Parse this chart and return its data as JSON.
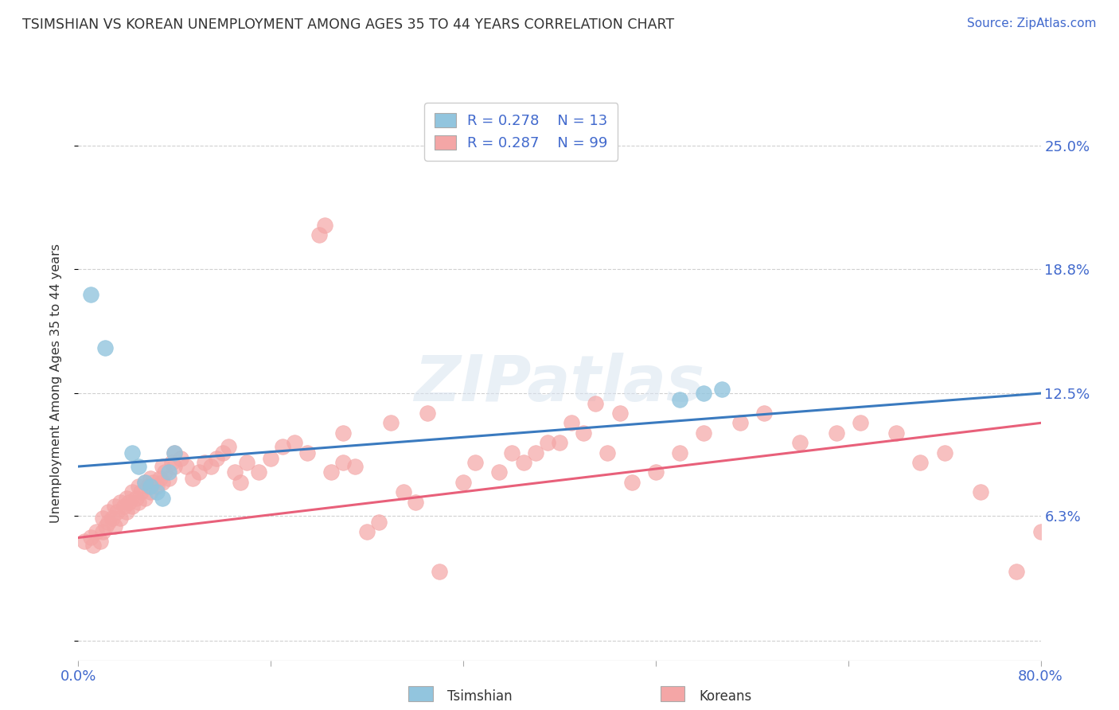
{
  "title": "TSIMSHIAN VS KOREAN UNEMPLOYMENT AMONG AGES 35 TO 44 YEARS CORRELATION CHART",
  "source": "Source: ZipAtlas.com",
  "ylabel": "Unemployment Among Ages 35 to 44 years",
  "yticks": [
    0.0,
    6.3,
    12.5,
    18.8,
    25.0
  ],
  "ytick_labels": [
    "",
    "6.3%",
    "12.5%",
    "18.8%",
    "25.0%"
  ],
  "xlim": [
    0.0,
    80.0
  ],
  "ylim": [
    -1.0,
    27.0
  ],
  "tsimshian_R": 0.278,
  "tsimshian_N": 13,
  "korean_R": 0.287,
  "korean_N": 99,
  "tsimshian_color": "#92c5de",
  "korean_color": "#f4a6a6",
  "tsimshian_line_color": "#3a7abf",
  "korean_line_color": "#e8607a",
  "text_color": "#4169cd",
  "dark_text": "#333333",
  "background_color": "#ffffff",
  "grid_color": "#d0d0d0",
  "tsimshian_x": [
    1.0,
    2.2,
    4.5,
    5.0,
    5.5,
    6.0,
    6.5,
    7.0,
    7.5,
    8.0,
    50.0,
    52.0,
    53.5
  ],
  "tsimshian_y": [
    17.5,
    14.8,
    9.5,
    8.8,
    8.0,
    7.8,
    7.5,
    7.2,
    8.5,
    9.5,
    12.2,
    12.5,
    12.7
  ],
  "korean_x": [
    0.5,
    1.0,
    1.2,
    1.5,
    1.8,
    2.0,
    2.0,
    2.3,
    2.5,
    2.5,
    2.8,
    3.0,
    3.0,
    3.2,
    3.5,
    3.5,
    3.8,
    4.0,
    4.0,
    4.2,
    4.5,
    4.5,
    4.8,
    5.0,
    5.0,
    5.2,
    5.5,
    5.5,
    5.8,
    6.0,
    6.0,
    6.2,
    6.5,
    6.8,
    7.0,
    7.0,
    7.2,
    7.5,
    7.8,
    8.0,
    8.0,
    8.5,
    9.0,
    9.5,
    10.0,
    10.5,
    11.0,
    11.5,
    12.0,
    12.5,
    13.0,
    13.5,
    14.0,
    15.0,
    16.0,
    17.0,
    18.0,
    19.0,
    20.0,
    20.5,
    21.0,
    22.0,
    23.0,
    24.0,
    25.0,
    27.0,
    28.0,
    30.0,
    32.0,
    35.0,
    37.0,
    38.0,
    40.0,
    42.0,
    44.0,
    46.0,
    48.0,
    50.0,
    52.0,
    55.0,
    57.0,
    60.0,
    63.0,
    65.0,
    68.0,
    70.0,
    72.0,
    75.0,
    78.0,
    80.0,
    22.0,
    26.0,
    29.0,
    33.0,
    36.0,
    39.0,
    41.0,
    43.0,
    45.0
  ],
  "korean_y": [
    5.0,
    5.2,
    4.8,
    5.5,
    5.0,
    5.5,
    6.2,
    5.8,
    6.0,
    6.5,
    6.2,
    5.8,
    6.8,
    6.5,
    6.2,
    7.0,
    6.8,
    6.5,
    7.2,
    7.0,
    6.8,
    7.5,
    7.2,
    7.0,
    7.8,
    7.5,
    7.2,
    8.0,
    7.8,
    7.5,
    8.2,
    8.0,
    7.8,
    8.2,
    8.0,
    8.8,
    8.5,
    8.2,
    9.0,
    8.8,
    9.5,
    9.2,
    8.8,
    8.2,
    8.5,
    9.0,
    8.8,
    9.2,
    9.5,
    9.8,
    8.5,
    8.0,
    9.0,
    8.5,
    9.2,
    9.8,
    10.0,
    9.5,
    20.5,
    21.0,
    8.5,
    9.0,
    8.8,
    5.5,
    6.0,
    7.5,
    7.0,
    3.5,
    8.0,
    8.5,
    9.0,
    9.5,
    10.0,
    10.5,
    9.5,
    8.0,
    8.5,
    9.5,
    10.5,
    11.0,
    11.5,
    10.0,
    10.5,
    11.0,
    10.5,
    9.0,
    9.5,
    7.5,
    3.5,
    5.5,
    10.5,
    11.0,
    11.5,
    9.0,
    9.5,
    10.0,
    11.0,
    12.0,
    11.5
  ],
  "tsim_line_x0": 0.0,
  "tsim_line_y0": 8.8,
  "tsim_line_x1": 80.0,
  "tsim_line_y1": 12.5,
  "kor_line_x0": 0.0,
  "kor_line_y0": 5.2,
  "kor_line_x1": 80.0,
  "kor_line_y1": 11.0
}
